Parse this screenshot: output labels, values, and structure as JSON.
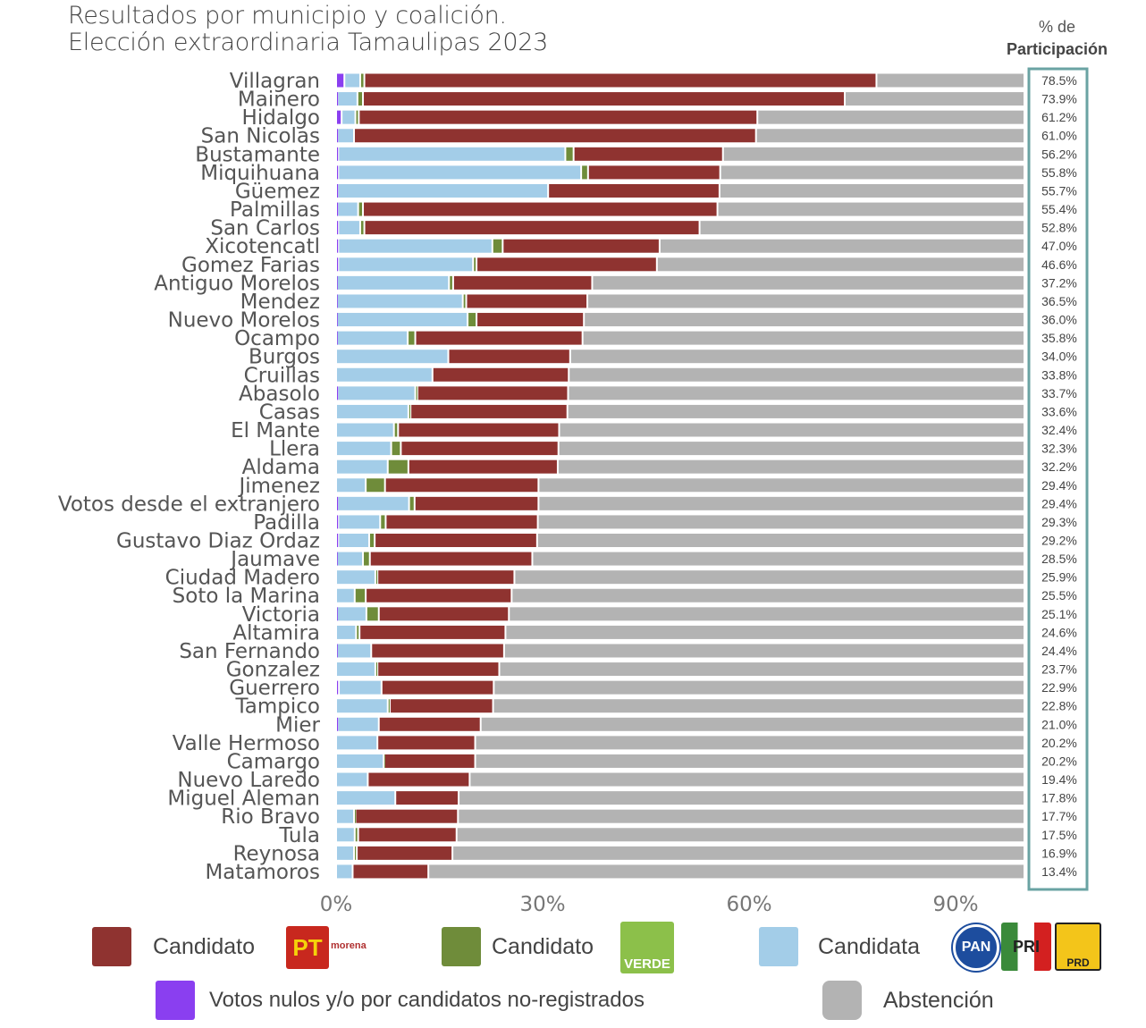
{
  "chart_data": {
    "type": "bar",
    "orientation": "horizontal",
    "stacked": true,
    "title": "Resultados por municipio y coalición.",
    "subtitle": "Elección extraordinaria Tamaulipas 2023",
    "participation_header": [
      "% de",
      "Participación"
    ],
    "xlim": [
      0,
      100
    ],
    "xticks": [
      "0%",
      "30%",
      "60%",
      "90%"
    ],
    "grid": false,
    "legend_position": "bottom",
    "categories": [
      "Villagran",
      "Mainero",
      "Hidalgo",
      "San Nicolas",
      "Bustamante",
      "Miquihuana",
      "Güemez",
      "Palmillas",
      "San Carlos",
      "Xicotencatl",
      "Gomez Farias",
      "Antiguo Morelos",
      "Mendez",
      "Nuevo Morelos",
      "Ocampo",
      "Burgos",
      "Cruillas",
      "Abasolo",
      "Casas",
      "El Mante",
      "Llera",
      "Aldama",
      "Jimenez",
      "Votos desde el extranjero",
      "Padilla",
      "Gustavo Diaz Ordaz",
      "Jaumave",
      "Ciudad Madero",
      "Soto la Marina",
      "Victoria",
      "Altamira",
      "San Fernando",
      "Gonzalez",
      "Guerrero",
      "Tampico",
      "Mier",
      "Valle Hermoso",
      "Camargo",
      "Nuevo Laredo",
      "Miguel Aleman",
      "Rio Bravo",
      "Tula",
      "Reynosa",
      "Matamoros"
    ],
    "participation": [
      "78.5%",
      "73.9%",
      "61.2%",
      "61.0%",
      "56.2%",
      "55.8%",
      "55.7%",
      "55.4%",
      "52.8%",
      "47.0%",
      "46.6%",
      "37.2%",
      "36.5%",
      "36.0%",
      "35.8%",
      "34.0%",
      "33.8%",
      "33.7%",
      "33.6%",
      "32.4%",
      "32.3%",
      "32.2%",
      "29.4%",
      "29.4%",
      "29.3%",
      "29.2%",
      "28.5%",
      "25.9%",
      "25.5%",
      "25.1%",
      "24.6%",
      "24.4%",
      "23.7%",
      "22.9%",
      "22.8%",
      "21.0%",
      "20.2%",
      "20.2%",
      "19.4%",
      "17.8%",
      "17.7%",
      "17.5%",
      "16.9%",
      "13.4%"
    ],
    "series": [
      {
        "key": "nulos",
        "color": "#8a3ff0",
        "values": [
          1.2,
          0.2,
          0.8,
          0.2,
          0.3,
          0.3,
          0.2,
          0.2,
          0.3,
          0.3,
          0.3,
          0.1,
          0.1,
          0.1,
          0.1,
          0,
          0,
          0.2,
          0,
          0,
          0,
          0,
          0,
          0.2,
          0.3,
          0.3,
          0.1,
          0,
          0,
          0.1,
          0,
          0.1,
          0,
          0.4,
          0,
          0.2,
          0,
          0,
          0,
          0,
          0,
          0,
          0,
          0
        ]
      },
      {
        "key": "pan_pri_prd",
        "color": "#a3cde8",
        "values": [
          2.3,
          2.9,
          2.0,
          2.4,
          33.0,
          35.3,
          30.6,
          3.0,
          3.2,
          22.4,
          19.6,
          16.3,
          18.3,
          19.0,
          10.3,
          16.3,
          14.0,
          11.3,
          10.5,
          8.4,
          8.0,
          7.5,
          4.3,
          10.4,
          6.1,
          4.5,
          3.8,
          5.7,
          2.7,
          4.3,
          2.9,
          5.0,
          5.7,
          6.2,
          7.5,
          6.0,
          6.0,
          6.9,
          4.6,
          8.6,
          2.6,
          2.7,
          2.6,
          2.4
        ]
      },
      {
        "key": "verde",
        "color": "#6f8c3a",
        "values": [
          0.6,
          0.8,
          0.5,
          0,
          1.2,
          1.0,
          0,
          0.7,
          0.6,
          1.5,
          0.5,
          0.6,
          0.5,
          1.3,
          1.1,
          0,
          0,
          0.3,
          0.3,
          0.6,
          1.4,
          3.0,
          2.8,
          0.8,
          0.8,
          0.8,
          1.0,
          0.3,
          1.6,
          1.8,
          0.5,
          0,
          0.3,
          0,
          0.3,
          0,
          0,
          0.1,
          0,
          0,
          0.2,
          0.5,
          0.4,
          0
        ]
      },
      {
        "key": "pt_morena",
        "color": "#8f3330",
        "values": [
          74.4,
          70.0,
          57.9,
          58.4,
          21.7,
          19.2,
          24.9,
          51.5,
          48.7,
          22.8,
          26.2,
          20.2,
          17.6,
          15.6,
          24.3,
          17.7,
          19.8,
          21.9,
          22.8,
          23.4,
          22.9,
          21.7,
          22.3,
          18.0,
          22.1,
          23.6,
          23.6,
          19.9,
          21.2,
          18.9,
          21.2,
          19.3,
          17.7,
          16.3,
          15.0,
          14.8,
          14.2,
          13.2,
          14.8,
          9.2,
          14.9,
          14.3,
          13.9,
          11.0
        ]
      },
      {
        "key": "abstencion",
        "color": "#b3b3b3",
        "values": [
          21.5,
          26.1,
          38.8,
          39.0,
          43.8,
          44.2,
          44.3,
          44.6,
          47.2,
          53.0,
          53.4,
          62.8,
          63.5,
          64.0,
          64.2,
          66.0,
          66.2,
          66.3,
          66.4,
          67.6,
          67.7,
          67.8,
          70.6,
          70.6,
          70.7,
          70.8,
          71.5,
          74.1,
          74.5,
          74.9,
          75.4,
          75.6,
          76.3,
          77.1,
          77.2,
          79.0,
          79.8,
          79.8,
          80.6,
          82.2,
          82.3,
          82.5,
          83.1,
          86.6
        ]
      }
    ],
    "participation_box_color": "#6aa3a3"
  },
  "legend": {
    "items": [
      {
        "label": "Candidato",
        "color": "#8f3330",
        "logo": "PT morena"
      },
      {
        "label": "Candidato",
        "color": "#6f8c3a",
        "logo": "VERDE"
      },
      {
        "label": "Candidata",
        "color": "#a3cde8",
        "logo": "PAN PRI PRD"
      },
      {
        "label": "Votos nulos y/o por candidatos no-registrados",
        "color": "#8a3ff0"
      },
      {
        "label": "Abstención",
        "color": "#b3b3b3"
      }
    ],
    "logo_text": {
      "pt": "PT",
      "morena": "morena",
      "verde": "VERDE",
      "pan": "PAN",
      "pri": "PRI",
      "prd": "PRD"
    }
  }
}
